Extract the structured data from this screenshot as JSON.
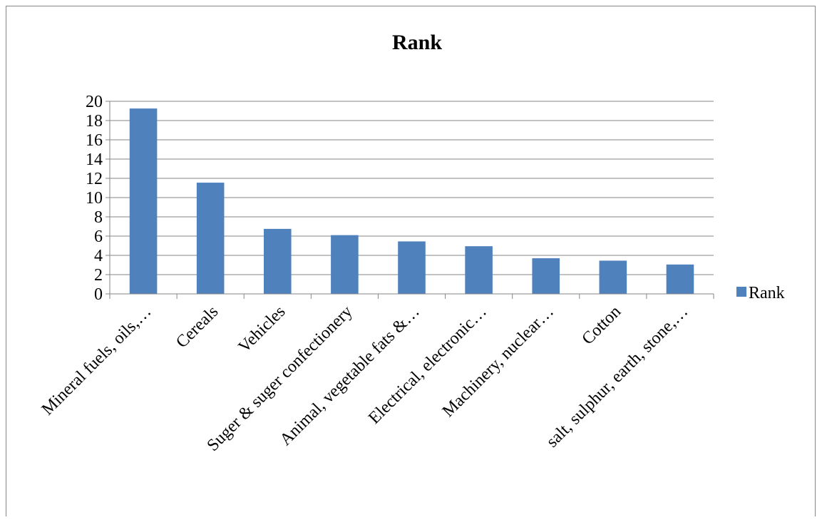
{
  "chart_data": {
    "type": "bar",
    "title": "Rank",
    "xlabel": "",
    "ylabel": "",
    "categories": [
      "Mineral fuels, oils,…",
      "Cereals",
      "Vehicles",
      "Suger & suger confectionery",
      "Animal, vegetable fats &…",
      "Electrical, electronic…",
      "Machinery, nuclear…",
      "Cotton",
      "salt, sulphur, earth, stone,…"
    ],
    "series": [
      {
        "name": "Rank",
        "values": [
          19.25,
          11.55,
          6.75,
          6.1,
          5.45,
          4.95,
          3.7,
          3.45,
          3.05
        ],
        "color": "#4f81bd"
      }
    ],
    "ylim": [
      0,
      20
    ],
    "yticks": [
      0,
      2,
      4,
      6,
      8,
      10,
      12,
      14,
      16,
      18,
      20
    ],
    "ytick_labels": [
      "0",
      "2",
      "4",
      "6",
      "8",
      "10",
      "12",
      "14",
      "16",
      "18",
      "20"
    ],
    "grid": true,
    "legend_position": "right"
  }
}
